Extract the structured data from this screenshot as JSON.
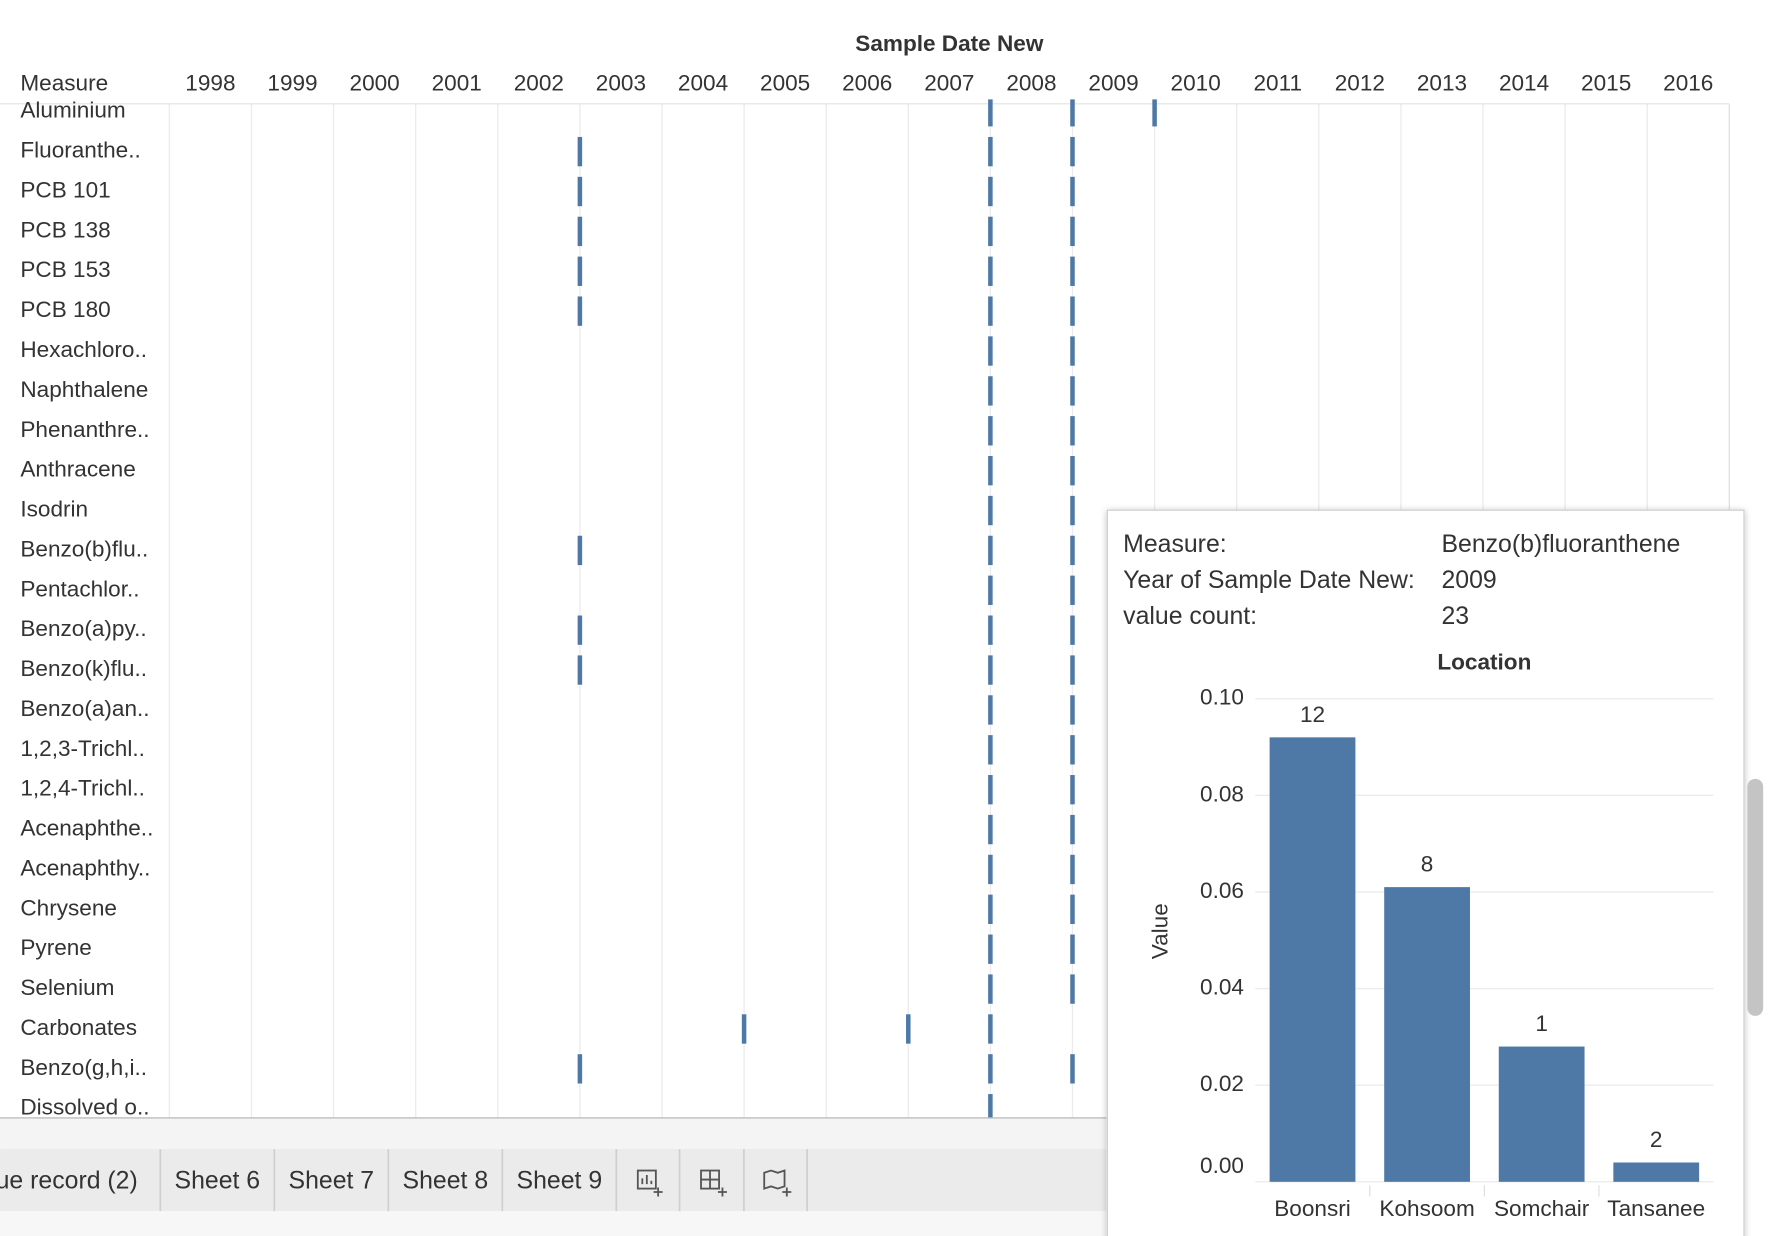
{
  "chart_data": [
    {
      "type": "strip",
      "title": "Sample Date New",
      "row_header": "Measure",
      "categories": [
        "Aluminium",
        "Fluoranthe..",
        "PCB 101",
        "PCB 138",
        "PCB 153",
        "PCB 180",
        "Hexachloro..",
        "Naphthalene",
        "Phenanthre..",
        "Anthracene",
        "Isodrin",
        "Benzo(b)flu..",
        "Pentachlor..",
        "Benzo(a)py..",
        "Benzo(k)flu..",
        "Benzo(a)an..",
        "1,2,3-Trichl..",
        "1,2,4-Trichl..",
        "Acenaphthe..",
        "Acenaphthy..",
        "Chrysene",
        "Pyrene",
        "Selenium",
        "Carbonates",
        "Benzo(g,h,i..",
        "Dissolved o.."
      ],
      "years": [
        [
          2008,
          2009,
          2010
        ],
        [
          2003,
          2008,
          2009
        ],
        [
          2003,
          2008,
          2009
        ],
        [
          2003,
          2008,
          2009
        ],
        [
          2003,
          2008,
          2009
        ],
        [
          2003,
          2008,
          2009
        ],
        [
          2008,
          2009
        ],
        [
          2008,
          2009
        ],
        [
          2008,
          2009
        ],
        [
          2008,
          2009
        ],
        [
          2008,
          2009
        ],
        [
          2003,
          2008,
          2009
        ],
        [
          2008,
          2009
        ],
        [
          2003,
          2008,
          2009
        ],
        [
          2003,
          2008,
          2009
        ],
        [
          2008,
          2009
        ],
        [
          2008,
          2009
        ],
        [
          2008,
          2009
        ],
        [
          2008,
          2009
        ],
        [
          2008,
          2009
        ],
        [
          2008,
          2009
        ],
        [
          2008,
          2009
        ],
        [
          2008,
          2009
        ],
        [
          2005,
          2007,
          2008
        ],
        [
          2003,
          2008,
          2009
        ],
        [
          2008
        ]
      ],
      "xlim": [
        1998,
        2017
      ],
      "xticks": [
        1998,
        1999,
        2000,
        2001,
        2002,
        2003,
        2004,
        2005,
        2006,
        2007,
        2008,
        2009,
        2010,
        2011,
        2012,
        2013,
        2014,
        2015,
        2016
      ],
      "color": "#4e79a7",
      "grid": true
    },
    {
      "type": "bar",
      "title": "Location",
      "y_label": "Value",
      "categories": [
        "Boonsri",
        "Kohsoom",
        "Somchair",
        "Tansanee"
      ],
      "values": [
        0.092,
        0.061,
        0.028,
        0.004
      ],
      "counts": [
        12,
        8,
        1,
        2
      ],
      "color": "#4e79a7",
      "ylim": [
        0,
        0.1
      ],
      "yticks": [
        {
          "value": 0,
          "label": "0.00"
        },
        {
          "value": 0.02,
          "label": "0.02"
        },
        {
          "value": 0.04,
          "label": "0.04"
        },
        {
          "value": 0.06,
          "label": "0.06"
        },
        {
          "value": 0.08,
          "label": "0.08"
        },
        {
          "value": 0.1,
          "label": "0.10"
        }
      ],
      "grid": true
    }
  ],
  "tooltip": {
    "rows": [
      {
        "label": "Measure:",
        "value": "Benzo(b)fluoranthene"
      },
      {
        "label": "Year of Sample Date New:",
        "value": 2009
      },
      {
        "label": "value count:",
        "value": 23
      }
    ]
  },
  "tabs": [
    "ue record (2)",
    "Sheet 6",
    "Sheet 7",
    "Sheet 8",
    "Sheet 9"
  ]
}
